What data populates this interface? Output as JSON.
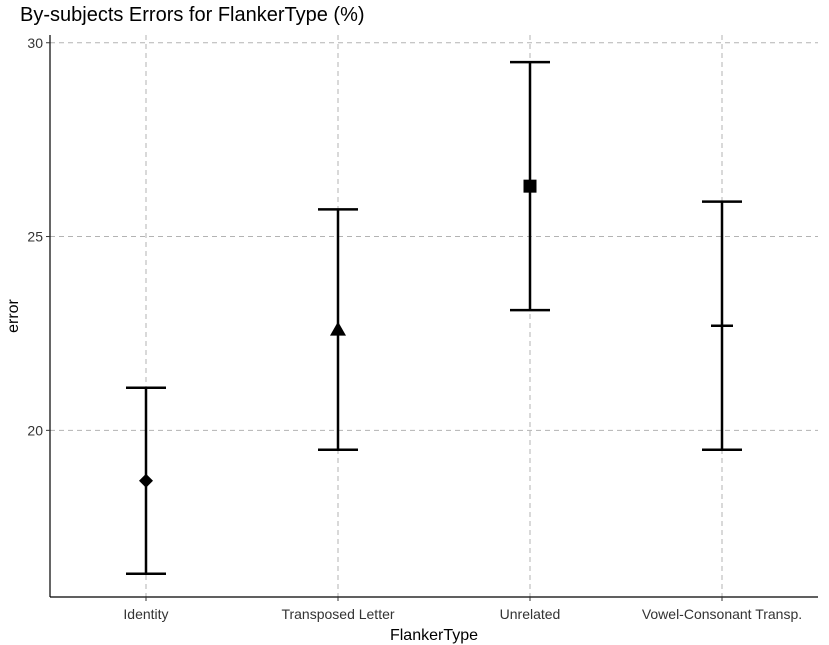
{
  "chart_data": {
    "type": "scatter",
    "title": "By-subjects Errors for FlankerType (%)",
    "xlabel": "FlankerType",
    "ylabel": "error",
    "categories": [
      "Identity",
      "Transposed Letter",
      "Unrelated",
      "Vowel-Consonant Transp."
    ],
    "y_ticks": [
      20,
      25,
      30
    ],
    "y_tick_labels": [
      "20",
      "25",
      "30"
    ],
    "ylim": [
      15.7,
      30.2
    ],
    "grid": true,
    "points": [
      {
        "category": "Identity",
        "value": 18.7,
        "lower": 16.3,
        "upper": 21.1,
        "marker": "diamond"
      },
      {
        "category": "Transposed Letter",
        "value": 22.6,
        "lower": 19.5,
        "upper": 25.7,
        "marker": "triangle"
      },
      {
        "category": "Unrelated",
        "value": 26.3,
        "lower": 23.1,
        "upper": 29.5,
        "marker": "square"
      },
      {
        "category": "Vowel-Consonant Transp.",
        "value": 22.7,
        "lower": 19.5,
        "upper": 25.9,
        "marker": "cross"
      }
    ],
    "colors": {
      "marks": "#000000",
      "grid": "#b3b3b3",
      "axis": "#000000"
    }
  }
}
